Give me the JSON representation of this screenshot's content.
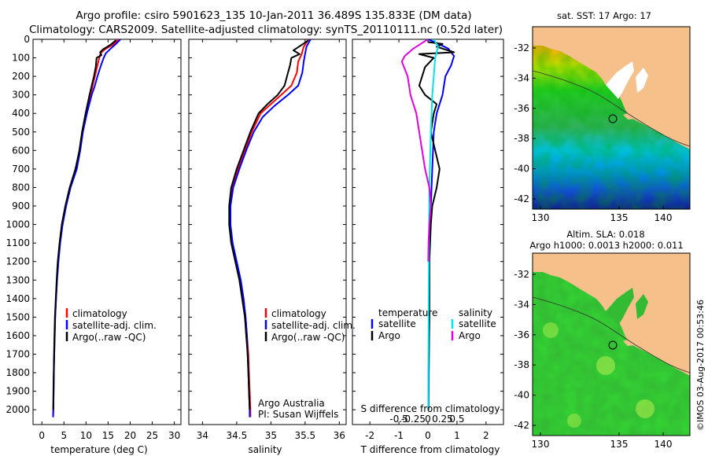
{
  "header": {
    "line1": "Argo profile: csiro 5901623_135 10-Jan-2011 36.489S 135.833E (DM data)",
    "line2": "Climatology: CARS2009. Satellite-adjusted climatology: synTS_20110111.nc (0.52d later)"
  },
  "colors": {
    "climatology": "#ff0000",
    "satellite": "#0000ff",
    "argo": "#000000",
    "sal_satellite": "#00e5e5",
    "sal_argo": "#e000e0"
  },
  "chart_data": [
    {
      "type": "line",
      "id": "temperature",
      "xlabel": "temperature (deg C)",
      "ylabel": "",
      "xlim": [
        -2,
        31.5
      ],
      "ylim": [
        2080,
        0
      ],
      "xticks": [
        0,
        5,
        10,
        15,
        20,
        25,
        30
      ],
      "yticks": [
        0,
        100,
        200,
        300,
        400,
        500,
        600,
        700,
        800,
        900,
        1000,
        1100,
        1200,
        1300,
        1400,
        1500,
        1600,
        1700,
        1800,
        1900,
        2000
      ],
      "legend": {
        "labels": [
          "climatology",
          "satellite-adj. clim.",
          "Argo(..raw -QC)"
        ],
        "position": "lower-middle"
      },
      "series": [
        {
          "name": "climatology",
          "color": "#ff0000",
          "points": [
            [
              17.4,
              0
            ],
            [
              16.0,
              30
            ],
            [
              14.2,
              55
            ],
            [
              13.3,
              75
            ],
            [
              13.0,
              100
            ],
            [
              12.6,
              140
            ],
            [
              12.0,
              200
            ],
            [
              11.5,
              250
            ],
            [
              11.0,
              300
            ],
            [
              10.0,
              400
            ],
            [
              9.2,
              500
            ],
            [
              8.6,
              600
            ],
            [
              7.8,
              700
            ],
            [
              6.4,
              800
            ],
            [
              5.4,
              900
            ],
            [
              4.6,
              1000
            ],
            [
              4.1,
              1100
            ],
            [
              3.7,
              1200
            ],
            [
              3.4,
              1300
            ],
            [
              3.2,
              1400
            ],
            [
              3.0,
              1500
            ],
            [
              2.9,
              1600
            ],
            [
              2.8,
              1700
            ],
            [
              2.7,
              1800
            ],
            [
              2.65,
              1900
            ],
            [
              2.6,
              2000
            ],
            [
              2.55,
              2040
            ]
          ]
        },
        {
          "name": "satellite-adj. clim.",
          "color": "#0000ff",
          "points": [
            [
              17.8,
              0
            ],
            [
              17.0,
              20
            ],
            [
              15.6,
              50
            ],
            [
              14.5,
              75
            ],
            [
              14.0,
              100
            ],
            [
              13.4,
              140
            ],
            [
              12.6,
              200
            ],
            [
              12.0,
              250
            ],
            [
              11.3,
              300
            ],
            [
              10.2,
              400
            ],
            [
              9.3,
              500
            ],
            [
              8.7,
              600
            ],
            [
              7.9,
              700
            ],
            [
              6.5,
              800
            ],
            [
              5.5,
              900
            ],
            [
              4.7,
              1000
            ],
            [
              4.15,
              1100
            ],
            [
              3.75,
              1200
            ],
            [
              3.45,
              1300
            ],
            [
              3.22,
              1400
            ],
            [
              3.02,
              1500
            ],
            [
              2.92,
              1600
            ],
            [
              2.82,
              1700
            ],
            [
              2.72,
              1800
            ],
            [
              2.66,
              1900
            ],
            [
              2.6,
              2000
            ],
            [
              2.55,
              2040
            ]
          ]
        },
        {
          "name": "Argo(..raw -QC)",
          "color": "#000000",
          "points": [
            [
              16.8,
              5
            ],
            [
              15.5,
              30
            ],
            [
              13.8,
              55
            ],
            [
              13.2,
              70
            ],
            [
              13.5,
              85
            ],
            [
              12.4,
              100
            ],
            [
              12.2,
              150
            ],
            [
              11.8,
              200
            ],
            [
              11.3,
              250
            ],
            [
              10.8,
              300
            ],
            [
              9.9,
              400
            ],
            [
              9.1,
              500
            ],
            [
              8.5,
              600
            ],
            [
              7.6,
              700
            ],
            [
              6.3,
              800
            ],
            [
              5.3,
              900
            ],
            [
              4.5,
              1000
            ],
            [
              4.0,
              1100
            ],
            [
              3.6,
              1200
            ],
            [
              3.35,
              1300
            ],
            [
              3.15,
              1400
            ],
            [
              2.95,
              1500
            ],
            [
              2.85,
              1600
            ],
            [
              2.75,
              1700
            ],
            [
              2.68,
              1800
            ],
            [
              2.62,
              1900
            ],
            [
              2.58,
              2000
            ]
          ]
        }
      ]
    },
    {
      "type": "line",
      "id": "salinity",
      "xlabel": "salinity",
      "ylabel": "",
      "xlim": [
        33.8,
        36.1
      ],
      "ylim": [
        2080,
        0
      ],
      "xticks": [
        34,
        34.5,
        35,
        35.5,
        36
      ],
      "xticklabels": [
        "34",
        "34.5",
        "35",
        "35.5",
        "36"
      ],
      "legend": {
        "labels": [
          "climatology",
          "satellite-adj. clim.",
          "Argo(..raw -QC)"
        ],
        "position": "lower-right"
      },
      "annotation": [
        "Argo Australia",
        "PI: Susan Wijffels"
      ],
      "series": [
        {
          "name": "climatology",
          "color": "#ff0000",
          "points": [
            [
              35.55,
              0
            ],
            [
              35.48,
              40
            ],
            [
              35.45,
              80
            ],
            [
              35.4,
              120
            ],
            [
              35.38,
              180
            ],
            [
              35.3,
              250
            ],
            [
              35.15,
              300
            ],
            [
              35.0,
              350
            ],
            [
              34.85,
              400
            ],
            [
              34.72,
              500
            ],
            [
              34.62,
              600
            ],
            [
              34.52,
              700
            ],
            [
              34.44,
              800
            ],
            [
              34.4,
              900
            ],
            [
              34.4,
              1000
            ],
            [
              34.43,
              1100
            ],
            [
              34.5,
              1200
            ],
            [
              34.55,
              1300
            ],
            [
              34.6,
              1400
            ],
            [
              34.63,
              1500
            ],
            [
              34.65,
              1600
            ],
            [
              34.67,
              1700
            ],
            [
              34.68,
              1800
            ],
            [
              34.69,
              1900
            ],
            [
              34.7,
              2000
            ],
            [
              34.7,
              2040
            ]
          ]
        },
        {
          "name": "satellite-adj. clim.",
          "color": "#0000ff",
          "points": [
            [
              35.58,
              0
            ],
            [
              35.52,
              40
            ],
            [
              35.5,
              80
            ],
            [
              35.48,
              120
            ],
            [
              35.46,
              180
            ],
            [
              35.4,
              250
            ],
            [
              35.25,
              300
            ],
            [
              35.05,
              360
            ],
            [
              34.88,
              420
            ],
            [
              34.75,
              500
            ],
            [
              34.64,
              600
            ],
            [
              34.54,
              700
            ],
            [
              34.45,
              800
            ],
            [
              34.41,
              900
            ],
            [
              34.41,
              1000
            ],
            [
              34.44,
              1100
            ],
            [
              34.5,
              1200
            ],
            [
              34.56,
              1300
            ],
            [
              34.6,
              1400
            ],
            [
              34.63,
              1500
            ],
            [
              34.65,
              1600
            ],
            [
              34.66,
              1700
            ],
            [
              34.67,
              1800
            ],
            [
              34.68,
              1900
            ],
            [
              34.69,
              2000
            ],
            [
              34.69,
              2040
            ]
          ]
        },
        {
          "name": "Argo(..raw -QC)",
          "color": "#000000",
          "points": [
            [
              35.55,
              5
            ],
            [
              35.45,
              30
            ],
            [
              35.33,
              60
            ],
            [
              35.42,
              80
            ],
            [
              35.3,
              100
            ],
            [
              35.28,
              140
            ],
            [
              35.25,
              180
            ],
            [
              35.2,
              250
            ],
            [
              35.1,
              300
            ],
            [
              34.95,
              350
            ],
            [
              34.82,
              400
            ],
            [
              34.7,
              500
            ],
            [
              34.6,
              600
            ],
            [
              34.5,
              700
            ],
            [
              34.42,
              800
            ],
            [
              34.39,
              900
            ],
            [
              34.39,
              1000
            ],
            [
              34.42,
              1100
            ],
            [
              34.48,
              1200
            ],
            [
              34.54,
              1300
            ],
            [
              34.58,
              1400
            ],
            [
              34.62,
              1500
            ],
            [
              34.64,
              1600
            ],
            [
              34.66,
              1700
            ],
            [
              34.67,
              1800
            ],
            [
              34.68,
              1900
            ],
            [
              34.69,
              2000
            ]
          ]
        }
      ]
    },
    {
      "type": "line",
      "id": "difference",
      "xlabel": "T difference from climatology",
      "xlim": [
        -2.6,
        2.6
      ],
      "ylim": [
        2080,
        0
      ],
      "xticks": [
        -2,
        -1,
        0,
        1,
        2
      ],
      "top_label": "S difference from climatology",
      "top_ticks": [
        "-0.5",
        "-0.25",
        "0",
        "0.25",
        "0.5"
      ],
      "legend": {
        "temperature_title": "temperature",
        "salinity_title": "salinity",
        "temperature_labels": [
          "satellite",
          "Argo"
        ],
        "salinity_labels": [
          "satellite",
          "Argo"
        ]
      },
      "series": [
        {
          "name": "temperature satellite",
          "color": "#0000ff",
          "points": [
            [
              0,
              0
            ],
            [
              0.3,
              20
            ],
            [
              0.7,
              50
            ],
            [
              0.9,
              90
            ],
            [
              0.8,
              140
            ],
            [
              0.6,
              200
            ],
            [
              0.5,
              300
            ],
            [
              0.3,
              400
            ],
            [
              0.2,
              500
            ],
            [
              0.15,
              700
            ],
            [
              0.1,
              900
            ],
            [
              0.05,
              1100
            ],
            [
              0.05,
              1500
            ],
            [
              0.02,
              2000
            ]
          ]
        },
        {
          "name": "temperature Argo",
          "color": "#000000",
          "points": [
            [
              0,
              15
            ],
            [
              0.5,
              25
            ],
            [
              0.3,
              40
            ],
            [
              0.9,
              70
            ],
            [
              -0.3,
              80
            ],
            [
              0.2,
              100
            ],
            [
              -0.1,
              150
            ],
            [
              -0.2,
              200
            ],
            [
              -0.3,
              250
            ],
            [
              -0.1,
              300
            ],
            [
              0.3,
              350
            ],
            [
              0.2,
              400
            ],
            [
              0.1,
              500
            ],
            [
              0.25,
              600
            ],
            [
              0.4,
              700
            ],
            [
              0.3,
              800
            ],
            [
              0.15,
              900
            ],
            [
              0.1,
              1000
            ],
            [
              0.05,
              1200
            ],
            [
              0.05,
              1500
            ],
            [
              0.02,
              1800
            ],
            [
              0.02,
              2000
            ]
          ]
        },
        {
          "name": "salinity satellite",
          "color": "#00e5e5",
          "points": [
            [
              0.2,
              0
            ],
            [
              0.35,
              40
            ],
            [
              0.25,
              100
            ],
            [
              0.2,
              200
            ],
            [
              0.15,
              300
            ],
            [
              0.1,
              500
            ],
            [
              0.05,
              800
            ],
            [
              0.03,
              1200
            ],
            [
              0.02,
              1600
            ],
            [
              0.01,
              2000
            ]
          ]
        },
        {
          "name": "salinity Argo",
          "color": "#e000e0",
          "points": [
            [
              0,
              0
            ],
            [
              -0.2,
              20
            ],
            [
              -0.5,
              50
            ],
            [
              -0.8,
              90
            ],
            [
              -0.9,
              120
            ],
            [
              -0.7,
              200
            ],
            [
              -0.6,
              300
            ],
            [
              -0.4,
              400
            ],
            [
              -0.3,
              500
            ],
            [
              -0.2,
              600
            ],
            [
              -0.1,
              700
            ],
            [
              0.05,
              800
            ],
            [
              0.1,
              900
            ],
            [
              0.05,
              1000
            ],
            [
              0.02,
              1100
            ],
            [
              0.01,
              1200
            ]
          ]
        }
      ]
    }
  ],
  "maps": {
    "sst": {
      "title": "sat. SST: 17 Argo: 17",
      "lat_ticks": [
        "-32",
        "-34",
        "-36",
        "-38",
        "-40",
        "-42"
      ],
      "lon_ticks": [
        "130",
        "135",
        "140"
      ],
      "float_lat": -36.489,
      "float_lon": 135.833
    },
    "sla": {
      "title1": "Altim. SLA: 0.018",
      "title2": "Argo h1000: 0.0013 h2000: 0.011",
      "lat_ticks": [
        "-32",
        "-34",
        "-36",
        "-38",
        "-40",
        "-42"
      ],
      "lon_ticks": [
        "130",
        "135",
        "140"
      ],
      "float_lat": -36.489,
      "float_lon": 135.833
    }
  },
  "watermark": "©IMOS 03-Aug-2017 00:53:46"
}
